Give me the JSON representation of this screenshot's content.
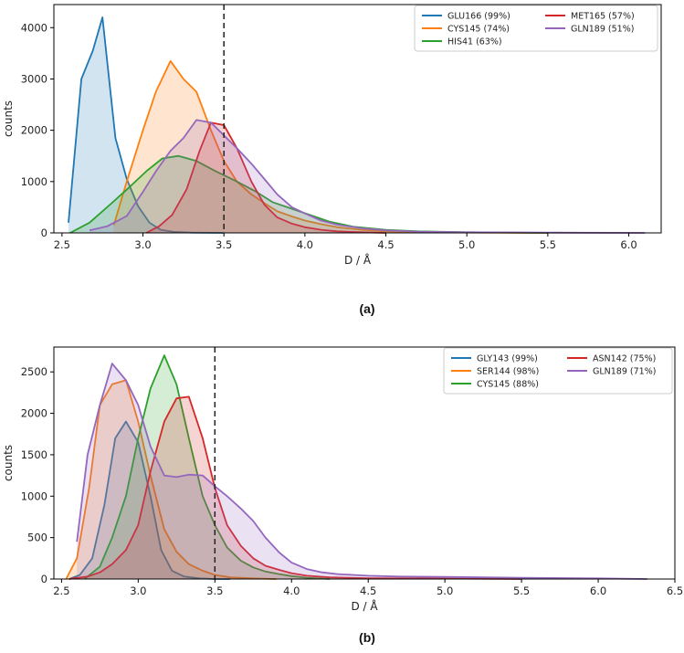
{
  "chart_data": [
    {
      "type": "area",
      "panel_label": "(a)",
      "xlabel": "D / Å",
      "ylabel": "counts",
      "xlim": [
        2.45,
        6.2
      ],
      "ylim": [
        0,
        4450
      ],
      "xticks": [
        2.5,
        3.0,
        3.5,
        4.0,
        4.5,
        5.0,
        5.5,
        6.0
      ],
      "xtick_labels": [
        "2.5",
        "3.0",
        "3.5",
        "4.0",
        "4.5",
        "5.0",
        "5.5",
        "6.0"
      ],
      "yticks": [
        0,
        1000,
        2000,
        3000,
        4000
      ],
      "ytick_labels": [
        "0",
        "1000",
        "2000",
        "3000",
        "4000"
      ],
      "threshold": 3.5,
      "legend_position": "top-right",
      "series": [
        {
          "name": "GLU166",
          "legend": "GLU166 (99%)",
          "color": "#1f77b4",
          "x": [
            2.54,
            2.62,
            2.69,
            2.75,
            2.83,
            2.9,
            2.97,
            3.04,
            3.11,
            3.19,
            3.3,
            3.5
          ],
          "y": [
            200,
            3000,
            3550,
            4200,
            1850,
            1050,
            520,
            200,
            60,
            20,
            5,
            0
          ]
        },
        {
          "name": "CYS145",
          "legend": "CYS145 (74%)",
          "color": "#ff7f0e",
          "x": [
            2.82,
            2.9,
            3.0,
            3.08,
            3.17,
            3.25,
            3.33,
            3.42,
            3.5,
            3.58,
            3.67,
            3.75,
            3.83,
            3.92,
            4.0,
            4.1,
            4.2,
            4.35,
            4.5,
            4.75,
            5.0,
            5.5
          ],
          "y": [
            150,
            1000,
            2000,
            2750,
            3350,
            3000,
            2750,
            2000,
            1400,
            1000,
            750,
            580,
            420,
            320,
            240,
            170,
            110,
            60,
            30,
            15,
            8,
            0
          ]
        },
        {
          "name": "HIS41",
          "legend": "HIS41 (63%)",
          "color": "#2ca02c",
          "x": [
            2.55,
            2.67,
            2.8,
            2.92,
            3.02,
            3.12,
            3.22,
            3.33,
            3.45,
            3.58,
            3.7,
            3.8,
            3.92,
            4.05,
            4.15,
            4.3,
            4.5,
            4.7,
            5.0,
            5.5
          ],
          "y": [
            0,
            200,
            560,
            900,
            1200,
            1450,
            1500,
            1400,
            1200,
            1000,
            800,
            600,
            470,
            330,
            220,
            120,
            60,
            30,
            12,
            0
          ]
        },
        {
          "name": "MET165",
          "legend": "MET165 (57%)",
          "color": "#d62728",
          "x": [
            3.02,
            3.1,
            3.18,
            3.27,
            3.35,
            3.42,
            3.5,
            3.58,
            3.67,
            3.75,
            3.83,
            3.92,
            4.0,
            4.1,
            4.2,
            4.35,
            4.5
          ],
          "y": [
            0,
            130,
            350,
            850,
            1600,
            2150,
            2100,
            1650,
            1000,
            550,
            300,
            180,
            110,
            60,
            30,
            12,
            0
          ]
        },
        {
          "name": "GLN189",
          "legend": "GLN189 (51%)",
          "color": "#9467bd",
          "x": [
            2.67,
            2.78,
            2.9,
            3.0,
            3.08,
            3.17,
            3.25,
            3.33,
            3.42,
            3.5,
            3.58,
            3.67,
            3.75,
            3.83,
            3.92,
            4.0,
            4.1,
            4.2,
            4.35,
            4.5,
            4.7,
            5.0,
            5.5,
            6.1
          ],
          "y": [
            50,
            130,
            330,
            800,
            1200,
            1600,
            1850,
            2200,
            2150,
            1900,
            1650,
            1350,
            1050,
            750,
            500,
            380,
            240,
            160,
            90,
            50,
            25,
            12,
            5,
            0
          ]
        }
      ]
    },
    {
      "type": "area",
      "panel_label": "(b)",
      "xlabel": "D / Å",
      "ylabel": "counts",
      "xlim": [
        2.45,
        6.5
      ],
      "ylim": [
        0,
        2800
      ],
      "xticks": [
        2.5,
        3.0,
        3.5,
        4.0,
        4.5,
        5.0,
        5.5,
        6.0,
        6.5
      ],
      "xtick_labels": [
        "2.5",
        "3.0",
        "3.5",
        "4.0",
        "4.5",
        "5.0",
        "5.5",
        "6.0",
        "6.5"
      ],
      "yticks": [
        0,
        500,
        1000,
        1500,
        2000,
        2500
      ],
      "ytick_labels": [
        "0",
        "500",
        "1000",
        "1500",
        "2000",
        "2500"
      ],
      "threshold": 3.5,
      "legend_position": "top-right",
      "series": [
        {
          "name": "GLY143",
          "legend": "GLY143 (99%)",
          "color": "#1f77b4",
          "x": [
            2.55,
            2.62,
            2.7,
            2.78,
            2.85,
            2.92,
            3.0,
            3.08,
            3.15,
            3.22,
            3.3,
            3.4,
            3.5,
            3.6
          ],
          "y": [
            0,
            50,
            250,
            900,
            1700,
            1900,
            1650,
            1000,
            350,
            100,
            30,
            8,
            0,
            0
          ]
        },
        {
          "name": "SER144",
          "legend": "SER144 (98%)",
          "color": "#ff7f0e",
          "x": [
            2.53,
            2.6,
            2.68,
            2.75,
            2.83,
            2.92,
            3.0,
            3.08,
            3.17,
            3.25,
            3.33,
            3.42,
            3.5,
            3.6,
            3.75,
            3.9
          ],
          "y": [
            0,
            250,
            1100,
            2100,
            2350,
            2400,
            1900,
            1250,
            600,
            330,
            180,
            100,
            50,
            20,
            8,
            0
          ]
        },
        {
          "name": "CYS145",
          "legend": "CYS145 (88%)",
          "color": "#2ca02c",
          "x": [
            2.65,
            2.75,
            2.83,
            2.92,
            3.0,
            3.08,
            3.17,
            3.25,
            3.33,
            3.42,
            3.5,
            3.58,
            3.67,
            3.75,
            3.83,
            3.92,
            4.0,
            4.1,
            4.25
          ],
          "y": [
            0,
            150,
            500,
            1000,
            1700,
            2300,
            2700,
            2350,
            1700,
            1000,
            650,
            380,
            220,
            140,
            90,
            60,
            35,
            15,
            0
          ]
        },
        {
          "name": "ASN142",
          "legend": "ASN142 (75%)",
          "color": "#d62728",
          "x": [
            2.55,
            2.67,
            2.75,
            2.83,
            2.92,
            3.0,
            3.08,
            3.17,
            3.25,
            3.33,
            3.42,
            3.5,
            3.58,
            3.67,
            3.75,
            3.83,
            3.92,
            4.0,
            4.1,
            4.25,
            4.5,
            5.0,
            5.5
          ],
          "y": [
            0,
            30,
            80,
            180,
            350,
            650,
            1300,
            1900,
            2180,
            2200,
            1700,
            1100,
            650,
            400,
            250,
            160,
            110,
            70,
            40,
            20,
            10,
            5,
            0
          ]
        },
        {
          "name": "GLN189",
          "legend": "GLN189 (71%)",
          "color": "#9467bd",
          "x": [
            2.6,
            2.67,
            2.75,
            2.83,
            2.92,
            3.0,
            3.08,
            3.17,
            3.25,
            3.33,
            3.42,
            3.5,
            3.58,
            3.67,
            3.75,
            3.83,
            3.92,
            4.0,
            4.1,
            4.2,
            4.3,
            4.4,
            4.5,
            4.7,
            5.0,
            5.5,
            6.0,
            6.32
          ],
          "y": [
            450,
            1500,
            2100,
            2600,
            2400,
            2100,
            1600,
            1250,
            1230,
            1260,
            1250,
            1120,
            1000,
            850,
            700,
            500,
            320,
            200,
            120,
            80,
            60,
            50,
            40,
            30,
            25,
            15,
            8,
            0
          ]
        }
      ]
    }
  ]
}
